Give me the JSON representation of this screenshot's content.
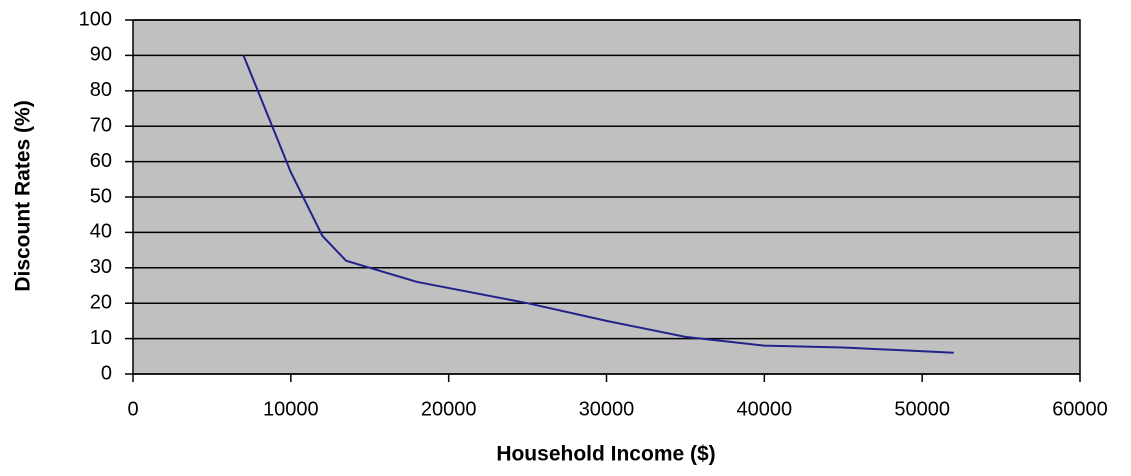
{
  "chart_data": {
    "type": "line",
    "x_label": "Household Income ($)",
    "y_label": "Discount Rates (%)",
    "x": [
      7000,
      10000,
      12000,
      13500,
      15000,
      18000,
      25000,
      30000,
      35000,
      38000,
      40000,
      45000,
      52000
    ],
    "series": [
      {
        "color": "#22228a",
        "values": [
          90,
          57,
          39,
          32,
          30,
          26,
          20,
          15,
          10.5,
          9,
          8,
          7.5,
          6
        ]
      }
    ],
    "xlim": [
      0,
      60000
    ],
    "xticks": [
      0,
      10000,
      20000,
      30000,
      40000,
      50000,
      60000
    ],
    "ylim": [
      0,
      100
    ],
    "yticks": [
      0,
      10,
      20,
      30,
      40,
      50,
      60,
      70,
      80,
      90,
      100
    ],
    "grid": true,
    "plot_background": "#c0c0c0"
  }
}
